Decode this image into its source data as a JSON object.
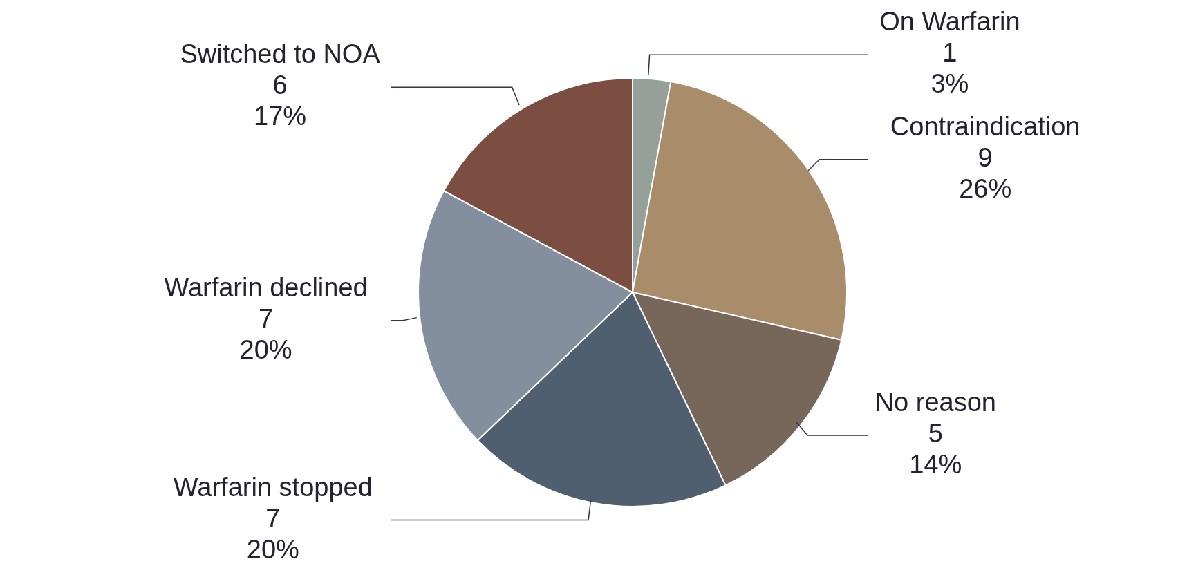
{
  "chart_data": {
    "type": "pie",
    "categories": [
      "On Warfarin",
      "Contraindication",
      "No reason",
      "Warfarin stopped",
      "Warfarin declined",
      "Switched to NOA"
    ],
    "values": [
      1,
      9,
      5,
      7,
      7,
      6
    ],
    "value_labels": [
      "1\n3%",
      "9\n26%",
      "5\n14%",
      "7\n20%",
      "7\n20%",
      "6\n17%"
    ],
    "colors": [
      "#95a099",
      "#a98d6a",
      "#77665a",
      "#4f5f6f",
      "#838f9e",
      "#7c4e42"
    ],
    "legend": false
  }
}
